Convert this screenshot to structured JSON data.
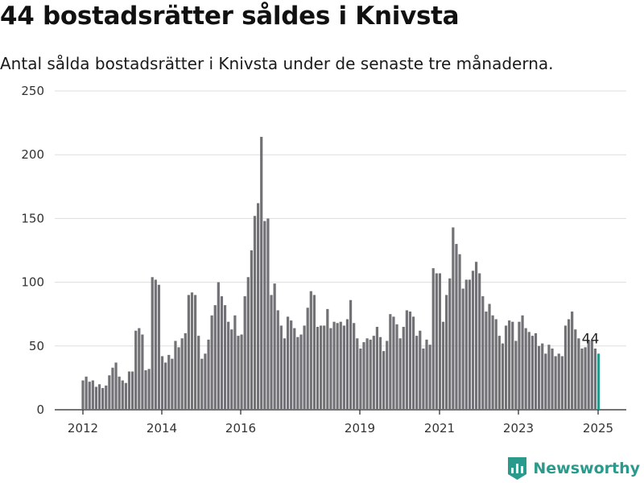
{
  "header": {
    "title": "44 bostadsrätter såldes i Knivsta",
    "subtitle": "Antal sålda bostadsrätter i Knivsta under de senaste tre månaderna."
  },
  "brand": {
    "name": "Newsworthy",
    "icon": "newsworthy-logo-icon",
    "color": "#2a9a8c"
  },
  "chart_data": {
    "type": "bar",
    "title": "44 bostadsrätter såldes i Knivsta",
    "subtitle": "Antal sålda bostadsrätter i Knivsta under de senaste tre månaderna.",
    "xlabel": "",
    "ylabel": "",
    "ylim": [
      0,
      250
    ],
    "y_ticks": [
      0,
      50,
      100,
      150,
      200,
      250
    ],
    "x_ticks": [
      "2012",
      "2014",
      "2016",
      "2019",
      "2021",
      "2023",
      "2025"
    ],
    "grid": true,
    "bar_color": "#727176",
    "highlight_color": "#2a9a8c",
    "annotation": "44",
    "values": [
      23,
      26,
      22,
      23,
      18,
      20,
      17,
      19,
      27,
      33,
      37,
      26,
      23,
      21,
      30,
      30,
      62,
      64,
      59,
      31,
      32,
      104,
      102,
      98,
      42,
      37,
      43,
      40,
      54,
      49,
      56,
      60,
      90,
      92,
      90,
      58,
      40,
      44,
      55,
      74,
      82,
      100,
      89,
      82,
      69,
      63,
      74,
      58,
      59,
      89,
      104,
      125,
      152,
      162,
      214,
      148,
      150,
      90,
      99,
      78,
      66,
      56,
      73,
      70,
      64,
      57,
      59,
      66,
      80,
      93,
      90,
      65,
      66,
      66,
      79,
      64,
      69,
      68,
      69,
      66,
      71,
      86,
      68,
      56,
      48,
      53,
      56,
      55,
      58,
      65,
      57,
      46,
      54,
      75,
      73,
      67,
      56,
      65,
      78,
      77,
      73,
      58,
      62,
      48,
      55,
      51,
      111,
      107,
      107,
      69,
      90,
      103,
      143,
      130,
      122,
      95,
      102,
      102,
      109,
      116,
      107,
      89,
      77,
      83,
      74,
      71,
      58,
      52,
      66,
      70,
      69,
      54,
      69,
      74,
      64,
      61,
      58,
      60,
      50,
      52,
      44,
      51,
      48,
      42,
      44,
      42,
      66,
      71,
      77,
      63,
      56,
      48,
      49,
      54,
      54,
      48,
      44
    ]
  }
}
